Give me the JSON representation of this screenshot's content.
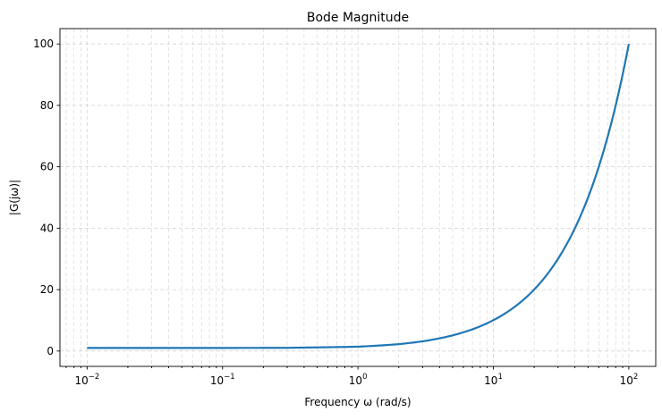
{
  "chart_data": {
    "type": "line",
    "title": "Bode Magnitude",
    "xlabel": "Frequency ω (rad/s)",
    "ylabel": "|G(jω)|",
    "xscale": "log",
    "xlim": [
      0.0063,
      158
    ],
    "ylim": [
      -5,
      105
    ],
    "grid": true,
    "grid_style": "dashed, major and minor",
    "x_ticks": [
      0.01,
      0.1,
      1,
      10,
      100
    ],
    "x_tick_labels": [
      {
        "base": "10",
        "exp": "−2"
      },
      {
        "base": "10",
        "exp": "−1"
      },
      {
        "base": "10",
        "exp": "0"
      },
      {
        "base": "10",
        "exp": "1"
      },
      {
        "base": "10",
        "exp": "2"
      }
    ],
    "y_ticks": [
      0,
      20,
      40,
      60,
      80,
      100
    ],
    "y_tick_labels": [
      "0",
      "20",
      "40",
      "60",
      "80",
      "100"
    ],
    "series": [
      {
        "color": "#1f77b4",
        "x": [
          0.01,
          0.1,
          0.3,
          1,
          2,
          3,
          5,
          7,
          10,
          15,
          20,
          30,
          40,
          50,
          60,
          70,
          80,
          90,
          100
        ],
        "y": [
          1.0,
          1.005,
          1.044,
          1.414,
          2.236,
          3.162,
          5.099,
          7.071,
          10.05,
          15.03,
          20.02,
          30.02,
          40.01,
          50.01,
          60.01,
          70.01,
          80.01,
          90.01,
          100.0
        ]
      }
    ]
  }
}
